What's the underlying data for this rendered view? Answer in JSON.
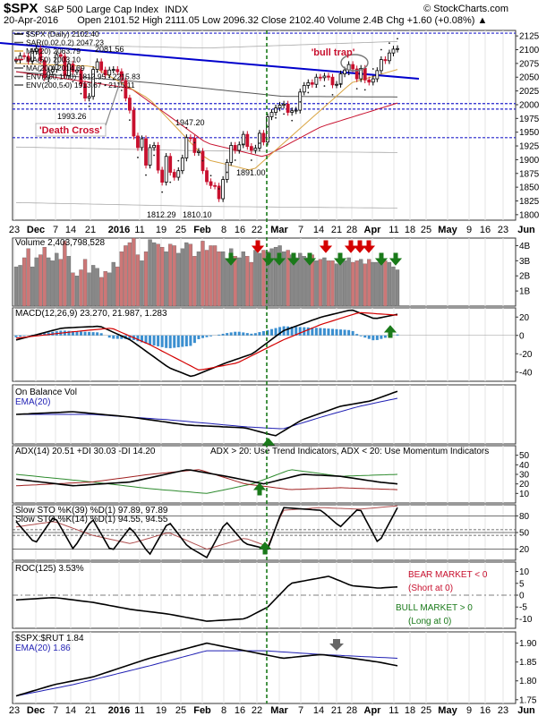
{
  "header": {
    "symbol": "$SPX",
    "name": "S&P 500 Large Cap Index",
    "exchange": "INDX",
    "brand": "© StockCharts.com",
    "date": "20-Apr-2016",
    "quote": "Open 2101.52   High 2111.05   Low 2096.32   Close 2102.40   Volume 2.4B   Chg +1.60 (+0.08%) ▲"
  },
  "colors": {
    "up": "#000000",
    "down": "#c8102e",
    "trendline": "#0000cc",
    "ma20": "#d9a441",
    "ma50": "#c8102e",
    "ma200": "#555555",
    "sar": "#1a1a1a",
    "vol_up": "#888888",
    "vol_down": "#cc7777",
    "macd_hist": "#3b8fd0",
    "obv_ema": "#1f1fb3",
    "plus_di": "#2e8b2e",
    "minus_di": "#a02020",
    "green_arrow": "#1a7a1a",
    "red_arrow": "#d40000",
    "blue_hline": "#2222cc",
    "vline": "#1a7a1a"
  },
  "price_legend": [
    {
      "text": "$SPX (Daily) 2102.40",
      "color": "#000000"
    },
    {
      "text": "SAR(0.02,0.2) 2047.23",
      "color": "#555555"
    },
    {
      "text": "MA(20) 2063.79",
      "color": "#d9a441"
    },
    {
      "text": "MA(50) 2003.10",
      "color": "#c8102e"
    },
    {
      "text": "MA(200) 2014.39",
      "color": "#555555"
    },
    {
      "text": "ENV(200,10.0) 1812.95 - 2215.83",
      "color": "#555555"
    },
    {
      "text": "ENV(200,5.0) 1913.67 - 2115.11",
      "color": "#555555"
    }
  ],
  "annotations": {
    "bull_trap": "'bull trap'",
    "death_cross": "'Death Cross'",
    "l2081": "2081.56",
    "l1993": "1993.26",
    "l1947": "1947.20",
    "l1891": "1891.00",
    "l1812": "1812.29",
    "l1810": "1810.10"
  },
  "x_axis": {
    "labels": [
      {
        "t": "23",
        "x": 16
      },
      {
        "t": "Dec",
        "x": 40
      },
      {
        "t": "7",
        "x": 62
      },
      {
        "t": "14",
        "x": 79
      },
      {
        "t": "21",
        "x": 101
      },
      {
        "t": "2016",
        "x": 133
      },
      {
        "t": "11",
        "x": 156
      },
      {
        "t": "19",
        "x": 180
      },
      {
        "t": "25",
        "x": 202
      },
      {
        "t": "Feb",
        "x": 226
      },
      {
        "t": "8",
        "x": 250
      },
      {
        "t": "16",
        "x": 268
      },
      {
        "t": "22",
        "x": 287
      },
      {
        "t": "Mar",
        "x": 312
      },
      {
        "t": "7",
        "x": 336
      },
      {
        "t": "14",
        "x": 356
      },
      {
        "t": "21",
        "x": 376
      },
      {
        "t": "28",
        "x": 393
      },
      {
        "t": "Apr",
        "x": 416
      },
      {
        "t": "11",
        "x": 440
      },
      {
        "t": "18",
        "x": 458
      },
      {
        "t": "25",
        "x": 476
      },
      {
        "t": "May",
        "x": 500
      },
      {
        "t": "9",
        "x": 524
      },
      {
        "t": "16",
        "x": 542
      },
      {
        "t": "23",
        "x": 562
      },
      {
        "t": "Jun",
        "x": 588
      }
    ]
  },
  "chart_data": [
    {
      "type": "candlestick",
      "title": "$SPX (Daily) 2102.40",
      "ylim": [
        1790,
        2135
      ],
      "yticks": [
        1800,
        1825,
        1850,
        1875,
        1900,
        1925,
        1950,
        1975,
        2000,
        2025,
        2050,
        2075,
        2100,
        2125
      ],
      "horizontal_lines": [
        2130,
        2002,
        1992,
        1940
      ],
      "ohlc_close_series": [
        2081,
        2089,
        2088,
        2079,
        2097,
        2102,
        2080,
        2049,
        2060,
        2064,
        2091,
        2088,
        2053,
        2074,
        2060,
        2063,
        2038,
        2012,
        2015,
        2064,
        2078,
        2063,
        2054,
        2063,
        2064,
        2060,
        2044,
        2012,
        1990,
        1943,
        1922,
        1938,
        1890,
        1922,
        1926,
        1881,
        1859,
        1906,
        1877,
        1868,
        1880,
        1903,
        1940,
        1939,
        1913,
        1915,
        1880,
        1860,
        1853,
        1852,
        1829,
        1864,
        1895,
        1926,
        1917,
        1927,
        1946,
        1924,
        1917,
        1921,
        1948,
        1932,
        1978,
        1986,
        1994,
        1999,
        2001,
        1986,
        1989,
        1990,
        2023,
        2035,
        2040,
        2037,
        2050,
        2049,
        2052,
        2050,
        2036,
        2037,
        2056,
        2063,
        2073,
        2065,
        2047,
        2066,
        2045,
        2041,
        2047,
        2062,
        2082,
        2080,
        2094,
        2101,
        2102
      ],
      "series": [
        {
          "name": "MA(20) 2063.79"
        },
        {
          "name": "MA(50) 2003.10"
        },
        {
          "name": "MA(200) 2014.39"
        },
        {
          "name": "SAR(0.02,0.2) 2047.23"
        }
      ]
    },
    {
      "type": "bar",
      "title": "Volume",
      "value_label": "2,403,798,528",
      "ylim": [
        0,
        4.5
      ],
      "yticks": [
        {
          "v": 1,
          "t": "1B"
        },
        {
          "v": 2,
          "t": "2B"
        },
        {
          "v": 3,
          "t": "3B"
        },
        {
          "v": 4,
          "t": "4B"
        }
      ],
      "values": [
        2.6,
        2.7,
        3.2,
        3.8,
        2.6,
        3.2,
        3.4,
        3.9,
        3.2,
        3.0,
        3.5,
        3.1,
        4.3,
        3.3,
        2.2,
        2.0,
        2.4,
        3.1,
        2.2,
        2.7,
        2.5,
        1.9,
        2.3,
        2.2,
        2.9,
        2.6,
        3.6,
        4.0,
        4.2,
        4.5,
        3.4,
        3.0,
        3.6,
        4.4,
        4.2,
        4.1,
        3.9,
        3.6,
        4.1,
        4.0,
        3.5,
        3.8,
        4.2,
        4.1,
        3.3,
        3.6,
        4.3,
        3.7,
        4.0,
        4.0,
        3.6,
        3.6,
        3.1,
        3.8,
        3.3,
        3.2,
        3.6,
        3.3,
        2.9,
        3.7,
        3.5,
        3.7,
        3.6,
        3.8,
        3.9,
        4.0,
        3.6,
        3.7,
        3.4,
        3.2,
        3.5,
        3.3,
        3.2,
        3.4,
        3.0,
        3.1,
        3.2,
        3.0,
        3.0,
        2.8,
        2.9,
        3.0,
        3.2,
        2.9,
        3.0,
        3.1,
        2.8,
        3.1,
        2.9,
        2.9,
        3.2,
        3.0,
        2.9,
        2.6,
        2.4
      ]
    },
    {
      "type": "line",
      "title": "MACD(12,26,9) 23.270, 21.987, 1.283",
      "ylim": [
        -50,
        30
      ],
      "yticks": [
        -40,
        -20,
        0,
        20
      ],
      "series": [
        {
          "name": "MACD 23.270"
        },
        {
          "name": "Signal 21.987"
        },
        {
          "name": "Hist 1.283"
        }
      ]
    },
    {
      "type": "line",
      "title": "On Balance Vol",
      "series": [
        {
          "name": "EMA(20)"
        }
      ]
    },
    {
      "type": "line",
      "title": "ADX(14) 20.51  +DI 30.03  -DI 14.20",
      "note": "ADX > 20: Use Trend Indicators, ADX < 20: Use Momentum Indicators",
      "ylim": [
        0,
        60
      ],
      "yticks": [
        10,
        20,
        30,
        40,
        50
      ]
    },
    {
      "type": "line",
      "title_k39": "Slow STO %K(39) %D(1) 97.89, 97.89",
      "title_k14": "Slow STO %K(14) %D(1) 94.55, 94.55",
      "ylim": [
        0,
        100
      ],
      "yticks": [
        20,
        50,
        80
      ],
      "lines": [
        80,
        55,
        50,
        45,
        20
      ]
    },
    {
      "type": "line",
      "title": "ROC(125) 3.53%",
      "bear_label": "BEAR MARKET < 0",
      "bear_sub": "(Short at 0)",
      "bull_label": "BULL MARKET > 0",
      "bull_sub": "(Long at 0)",
      "ylim": [
        -14,
        14
      ],
      "yticks": [
        -10,
        -5,
        0,
        5,
        10
      ]
    },
    {
      "type": "line",
      "title": "$SPX:$RUT 1.84",
      "ema_label": "EMA(20) 1.86",
      "ylim": [
        1.74,
        1.93
      ],
      "yticks": [
        1.75,
        1.8,
        1.85,
        1.9
      ]
    }
  ]
}
